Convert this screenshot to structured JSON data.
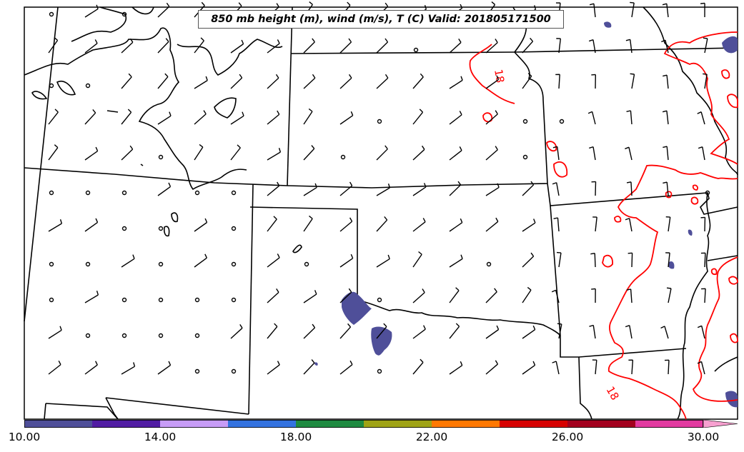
{
  "title": "850 mb height (m), wind (m/s), T (C) Valid: 201805171500",
  "contour_labels": [
    "18",
    "18"
  ],
  "colorbar": {
    "colors": [
      "#4f4f99",
      "#511ca3",
      "#c79cf7",
      "#3372e0",
      "#1e8a40",
      "#9fa315",
      "#ff7800",
      "#d70000",
      "#a3001e",
      "#e23aa0",
      "#f7a0d0"
    ],
    "ticks": [
      "10.00",
      "14.00",
      "18.00",
      "22.00",
      "26.00",
      "30.00"
    ],
    "extend": "max"
  },
  "colors": {
    "contour": "#ff0000",
    "boundary": "#000000",
    "fill": "#4f4f99"
  },
  "legend": "bottom colorbar"
}
